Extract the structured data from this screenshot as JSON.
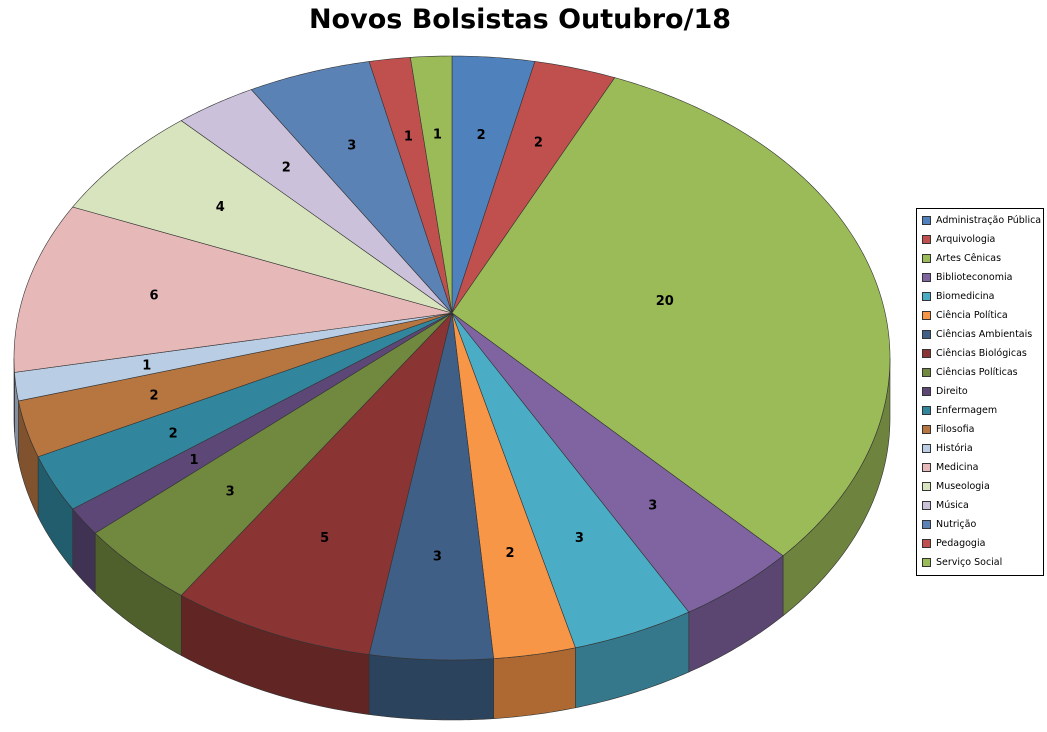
{
  "chart_data": {
    "type": "pie",
    "title": "Novos Bolsistas Outubro/18",
    "three_d": true,
    "legend_position": "right",
    "categories": [
      "Administração Pública",
      "Arquivologia",
      "Artes Cênicas",
      "Biblioteconomia",
      "Biomedicina",
      "Ciência Política",
      "Ciências Ambientais",
      "Ciências Biológicas",
      "Ciências Políticas",
      "Direito",
      "Enfermagem",
      "Filosofia",
      "História",
      "Medicina",
      "Museologia",
      "Música",
      "Nutrição",
      "Pedagogia",
      "Serviço Social"
    ],
    "values": [
      2,
      2,
      20,
      3,
      3,
      2,
      3,
      5,
      3,
      1,
      2,
      2,
      1,
      6,
      4,
      2,
      3,
      1,
      1
    ],
    "colors": [
      "#4F81BD",
      "#C0504D",
      "#9BBB59",
      "#8064A2",
      "#4BACC6",
      "#F79646",
      "#3F5F86",
      "#8A3533",
      "#71893F",
      "#5C4776",
      "#31859C",
      "#B77540",
      "#B9CDE5",
      "#E6B9B8",
      "#D7E4BD",
      "#CCC1DA",
      "#5B82B5",
      "#C0504D",
      "#9BBB59"
    ]
  }
}
